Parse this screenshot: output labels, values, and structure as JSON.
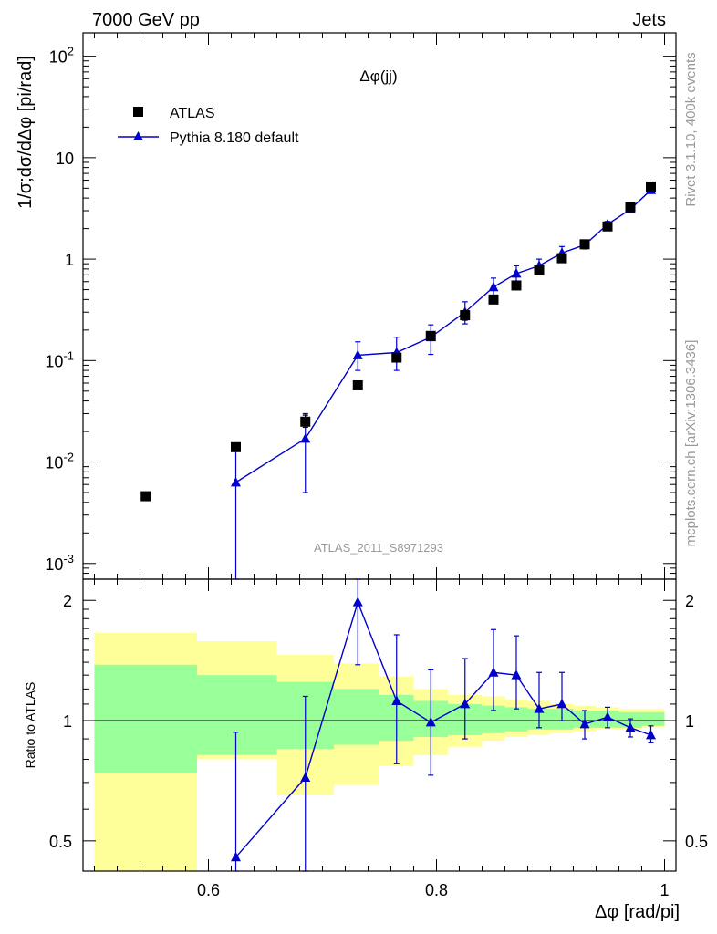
{
  "header": {
    "left": "7000 GeV pp",
    "right": "Jets"
  },
  "side_labels": {
    "top": "Rivet 3.1.10,  400k events",
    "bottom": "mcplots.cern.ch [arXiv:1306.3436]"
  },
  "colors": {
    "data": "#000000",
    "mc": "#0000cc",
    "band_inner": "#99ff99",
    "band_outer": "#ffff99",
    "ref_line": "#000000"
  },
  "chart_data": [
    {
      "type": "scatter",
      "panel": "main",
      "title": "Δφ(jj)",
      "watermark": "ATLAS_2011_S8971293",
      "ylabel": "1/σ;dσ/dΔφ [pi/rad]",
      "xlim": [
        0.49,
        1.01
      ],
      "ylim": [
        0.0007,
        170
      ],
      "yscale": "log",
      "yticks": [
        {
          "v": 0.001,
          "base": "10",
          "exp": "-3"
        },
        {
          "v": 0.01,
          "base": "10",
          "exp": "-2"
        },
        {
          "v": 0.1,
          "base": "10",
          "exp": "-1"
        },
        {
          "v": 1,
          "base": "1",
          "exp": ""
        },
        {
          "v": 10,
          "base": "10",
          "exp": ""
        },
        {
          "v": 100,
          "base": "10",
          "exp": "2"
        }
      ],
      "legend": {
        "position": "top-left",
        "entries": [
          {
            "name": "ATLAS",
            "marker": "square"
          },
          {
            "name": "Pythia 8.180 default",
            "marker": "triangle"
          }
        ]
      },
      "series": [
        {
          "name": "ATLAS",
          "marker": "square",
          "x": [
            0.545,
            0.624,
            0.685,
            0.731,
            0.765,
            0.795,
            0.825,
            0.85,
            0.87,
            0.89,
            0.91,
            0.93,
            0.95,
            0.97,
            0.988
          ],
          "y": [
            0.0046,
            0.014,
            0.025,
            0.057,
            0.107,
            0.175,
            0.28,
            0.4,
            0.55,
            0.78,
            1.02,
            1.4,
            2.1,
            3.25,
            5.2
          ],
          "err_lo": [
            0,
            0,
            0.003,
            0,
            0,
            0,
            0.03,
            0,
            0,
            0.05,
            0.05,
            0.1,
            0.1,
            0.15,
            0.2
          ],
          "err_hi": [
            0,
            0,
            0.004,
            0,
            0,
            0,
            0.03,
            0,
            0,
            0.05,
            0.05,
            0.1,
            0.1,
            0.15,
            0.2
          ]
        },
        {
          "name": "Pythia 8.180 default",
          "marker": "triangle",
          "line": true,
          "x": [
            0.624,
            0.685,
            0.731,
            0.765,
            0.795,
            0.825,
            0.85,
            0.87,
            0.89,
            0.91,
            0.93,
            0.95,
            0.97,
            0.988
          ],
          "y": [
            0.0063,
            0.017,
            0.113,
            0.12,
            0.17,
            0.3,
            0.53,
            0.72,
            0.86,
            1.15,
            1.38,
            2.2,
            3.1,
            4.8
          ],
          "err_lo": [
            0.0059,
            0.012,
            0.033,
            0.04,
            0.055,
            0.07,
            0.1,
            0.12,
            0.12,
            0.15,
            0.12,
            0.15,
            0.15,
            0.2
          ],
          "err_hi": [
            0.009,
            0.013,
            0.04,
            0.05,
            0.055,
            0.08,
            0.12,
            0.14,
            0.14,
            0.18,
            0.12,
            0.15,
            0.15,
            0.2
          ]
        }
      ]
    },
    {
      "type": "scatter",
      "panel": "ratio",
      "ylabel": "Ratio to ATLAS",
      "xlabel": "Δφ [rad/pi]",
      "xlim": [
        0.49,
        1.01
      ],
      "ylim": [
        0.42,
        2.26
      ],
      "yscale": "log",
      "xticks": [
        {
          "v": 0.6,
          "label": "0.6"
        },
        {
          "v": 0.8,
          "label": "0.8"
        },
        {
          "v": 1.0,
          "label": "1"
        }
      ],
      "yticks": [
        {
          "v": 0.5,
          "label": "0.5"
        },
        {
          "v": 1,
          "label": "1"
        },
        {
          "v": 2,
          "label": "2"
        }
      ],
      "bands": {
        "edges": [
          0.5,
          0.59,
          0.66,
          0.71,
          0.75,
          0.78,
          0.81,
          0.84,
          0.86,
          0.88,
          0.9,
          0.92,
          0.94,
          0.96,
          0.98,
          1.0
        ],
        "outer_lo": [
          0.3,
          0.8,
          0.65,
          0.69,
          0.77,
          0.82,
          0.86,
          0.89,
          0.91,
          0.92,
          0.93,
          0.94,
          0.95,
          0.95,
          0.96
        ],
        "outer_hi": [
          1.66,
          1.58,
          1.46,
          1.39,
          1.29,
          1.2,
          1.16,
          1.15,
          1.13,
          1.12,
          1.1,
          1.09,
          1.08,
          1.07,
          1.07
        ],
        "inner_lo": [
          0.74,
          0.82,
          0.85,
          0.87,
          0.89,
          0.91,
          0.92,
          0.93,
          0.94,
          0.95,
          0.95,
          0.96,
          0.96,
          0.96,
          0.97
        ],
        "inner_hi": [
          1.38,
          1.3,
          1.25,
          1.2,
          1.16,
          1.12,
          1.1,
          1.09,
          1.08,
          1.07,
          1.07,
          1.06,
          1.06,
          1.05,
          1.05
        ]
      },
      "series": [
        {
          "name": "Pythia 8.180 default",
          "marker": "triangle",
          "line": true,
          "x": [
            0.624,
            0.685,
            0.731,
            0.765,
            0.795,
            0.825,
            0.85,
            0.87,
            0.89,
            0.91,
            0.93,
            0.95,
            0.97,
            0.988
          ],
          "y": [
            0.455,
            0.72,
            1.98,
            1.12,
            0.99,
            1.1,
            1.32,
            1.3,
            1.07,
            1.1,
            0.98,
            1.02,
            0.96,
            0.92
          ],
          "err_lo": [
            0.455,
            0.42,
            0.6,
            0.34,
            0.26,
            0.2,
            0.26,
            0.23,
            0.11,
            0.1,
            0.08,
            0.06,
            0.05,
            0.04
          ],
          "err_hi": [
            0.48,
            0.43,
            0.4,
            0.52,
            0.35,
            0.33,
            0.37,
            0.33,
            0.25,
            0.22,
            0.08,
            0.06,
            0.05,
            0.05
          ]
        }
      ]
    }
  ]
}
